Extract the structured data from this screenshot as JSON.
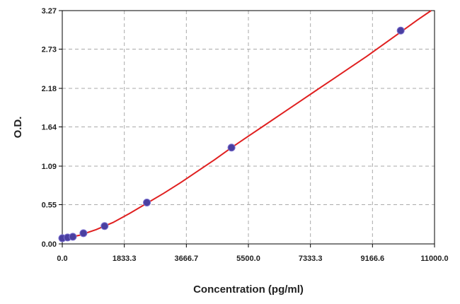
{
  "chart_data": {
    "type": "scatter",
    "title": "",
    "xlabel": "Concentration (pg/ml)",
    "ylabel": "O.D.",
    "xlim": [
      0,
      11000
    ],
    "ylim": [
      0,
      3.27
    ],
    "x_ticks": [
      "0.0",
      "1833.3",
      "3666.7",
      "5500.0",
      "7333.3",
      "9166.6",
      "11000.0"
    ],
    "y_ticks": [
      "0.00",
      "0.55",
      "1.09",
      "1.64",
      "2.18",
      "2.73",
      "3.27"
    ],
    "x_tick_values": [
      0,
      1833.3,
      3666.7,
      5500,
      7333.3,
      9166.6,
      11000
    ],
    "y_tick_values": [
      0,
      0.55,
      1.09,
      1.64,
      2.18,
      2.73,
      3.27
    ],
    "grid": true,
    "series": [
      {
        "kind": "points",
        "color": "#4a3fa0",
        "x": [
          0,
          156,
          312,
          625,
          1250,
          2500,
          5000,
          10000
        ],
        "y": [
          0.08,
          0.09,
          0.1,
          0.15,
          0.25,
          0.58,
          1.35,
          2.99
        ]
      },
      {
        "kind": "fit-line",
        "color": "#e02020",
        "x": [
          0,
          500,
          1000,
          1500,
          2000,
          2500,
          3000,
          3500,
          4000,
          4500,
          5000,
          5500,
          6000,
          6500,
          7000,
          7500,
          8000,
          8500,
          9000,
          9500,
          10000,
          10500,
          10900
        ],
        "y": [
          0.07,
          0.12,
          0.2,
          0.3,
          0.43,
          0.57,
          0.71,
          0.86,
          1.02,
          1.18,
          1.35,
          1.51,
          1.67,
          1.83,
          1.99,
          2.15,
          2.31,
          2.47,
          2.63,
          2.8,
          2.97,
          3.14,
          3.27
        ]
      }
    ]
  }
}
